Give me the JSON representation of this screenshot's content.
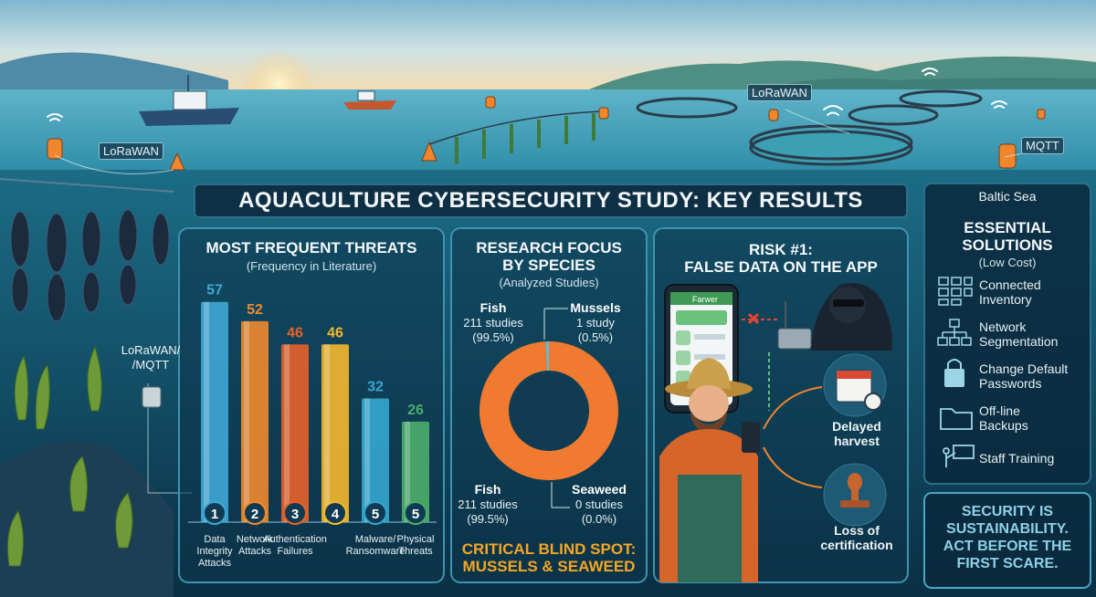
{
  "title": "AQUACULTURE CYBERSECURITY STUDY: KEY RESULTS",
  "scene_tags": {
    "lorawan_left": "LoRaWAN",
    "lorawan_right": "LoRaWAN",
    "mqtt_right": "MQTT",
    "lorawan_mqtt_line1": "LoRaWAN/",
    "lorawan_mqtt_line2": "/MQTT",
    "region": "Baltic Sea"
  },
  "threats_panel": {
    "title": "MOST FREQUENT THREATS",
    "subtitle": "(Frequency in Literature)"
  },
  "species_panel": {
    "title_line1": "RESEARCH FOCUS",
    "title_line2": "BY SPECIES",
    "subtitle": "(Analyzed Studies)",
    "blind_spot_line1": "CRITICAL BLIND SPOT:",
    "blind_spot_line2": "MUSSELS & SEAWEED"
  },
  "risk_panel": {
    "title_line1": "RISK #1:",
    "title_line2": "FALSE DATA ON THE APP",
    "phone_header": "Farwer",
    "consequence1_line1": "Delayed",
    "consequence1_line2": "harvest",
    "consequence2_line1": "Loss of",
    "consequence2_line2": "certification"
  },
  "solutions_panel": {
    "title_line1": "ESSENTIAL",
    "title_line2": "SOLUTIONS",
    "subtitle": "(Low Cost)",
    "items": [
      {
        "label": "Connected\nInventory",
        "icon": "inventory-grid-icon"
      },
      {
        "label": "Network\nSegmentation",
        "icon": "network-tree-icon"
      },
      {
        "label": "Change Default\nPasswords",
        "icon": "padlock-icon"
      },
      {
        "label": "Off-line\nBackups",
        "icon": "folder-icon"
      },
      {
        "label": "Staff Training",
        "icon": "presenter-icon"
      }
    ]
  },
  "motto": {
    "line1": "SECURITY IS",
    "line2": "SUSTAINABILITY.",
    "line3": "ACT BEFORE THE",
    "line4": "FIRST SCARE."
  },
  "chart_data": [
    {
      "type": "bar",
      "title": "MOST FREQUENT THREATS",
      "subtitle": "(Frequency in Literature)",
      "categories": [
        "Data Integrity Attacks",
        "Network Attacks",
        "Authentication Failures",
        "",
        "Malware/ Ransomware",
        "Physical Threats"
      ],
      "category_lines": [
        [
          "Data",
          "Integrity",
          "Attacks"
        ],
        [
          "Network",
          "Attacks"
        ],
        [
          "Authentication",
          "Failures"
        ],
        [],
        [
          "Malware/",
          "Ransomware"
        ],
        [
          "Physical",
          "Threats"
        ]
      ],
      "values": [
        57,
        52,
        46,
        46,
        32,
        26
      ],
      "ranks": [
        "1",
        "2",
        "3",
        "4",
        "5",
        "5"
      ],
      "colors": [
        "#3fa7d6",
        "#f08a2c",
        "#e8622a",
        "#f5b82e",
        "#34a7d0",
        "#4cae6a"
      ],
      "ylim": [
        0,
        60
      ]
    },
    {
      "type": "pie",
      "title": "RESEARCH FOCUS BY SPECIES",
      "subtitle": "(Analyzed Studies)",
      "slices": [
        {
          "name": "Fish",
          "value": 211,
          "line1": "211 studies",
          "line2": "(99.5%)",
          "color": "#f07a30"
        },
        {
          "name": "Mussels",
          "value": 1,
          "line1": "1 study",
          "line2": "(0.5%)",
          "color": "#6fb7cf"
        },
        {
          "name": "Seaweed",
          "value": 0,
          "line1": "0 studies",
          "line2": "(0.0%)",
          "color": "#5aa866"
        }
      ],
      "bottom_label": {
        "name": "Fish",
        "line1": "211 studies",
        "line2": "(99.5%)"
      }
    }
  ]
}
